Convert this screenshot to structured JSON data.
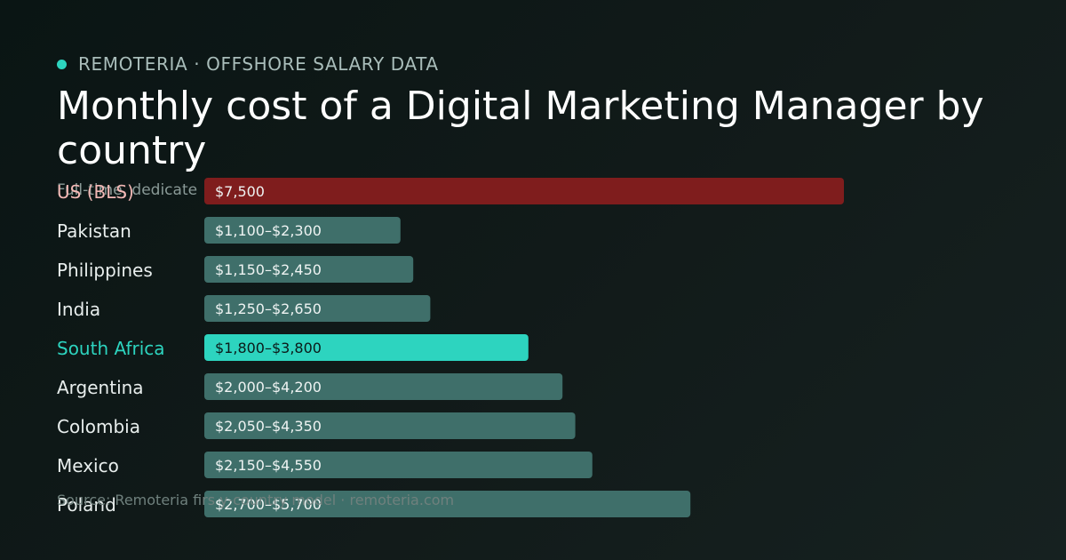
{
  "header": {
    "brand": "REMOTERIA · OFFSHORE SALARY DATA",
    "title": "Monthly cost of a Digital Marketing Manager by country",
    "subtitle": "Full-time, dedicate"
  },
  "footer": {
    "source": "Source: Remoteria firs                  y-country model · remoteria.com"
  },
  "colors": {
    "brand_dot": "#2dd4bf",
    "us_bar": "#7f1d1d",
    "us_label": "#f2b8b5",
    "default_bar": "#3f6f6a",
    "default_label": "#e8eeed",
    "highlight_bar": "#2dd4bf",
    "highlight_label": "#2dd4bf",
    "value_text": "#eef3f2",
    "highlight_value_text": "#0b1a19"
  },
  "chart_data": {
    "type": "bar",
    "orientation": "horizontal",
    "categories": [
      "US (BLS)",
      "Pakistan",
      "Philippines",
      "India",
      "South Africa",
      "Argentina",
      "Colombia",
      "Mexico",
      "Poland"
    ],
    "values": [
      7500,
      2300,
      2450,
      2650,
      3800,
      4200,
      4350,
      4550,
      5700
    ],
    "ranges": [
      [
        7500,
        7500
      ],
      [
        1100,
        2300
      ],
      [
        1150,
        2450
      ],
      [
        1250,
        2650
      ],
      [
        1800,
        3800
      ],
      [
        2000,
        4200
      ],
      [
        2050,
        4350
      ],
      [
        2150,
        4550
      ],
      [
        2700,
        5700
      ]
    ],
    "value_labels": [
      "$7,500",
      "$1,100–$2,300",
      "$1,150–$2,450",
      "$1,250–$2,650",
      "$1,800–$3,800",
      "$2,000–$4,200",
      "$2,050–$4,350",
      "$2,150–$4,550",
      "$2,700–$5,700"
    ],
    "highlight": "South Africa",
    "benchmark": "US (BLS)",
    "xlim": [
      0,
      7500
    ]
  }
}
